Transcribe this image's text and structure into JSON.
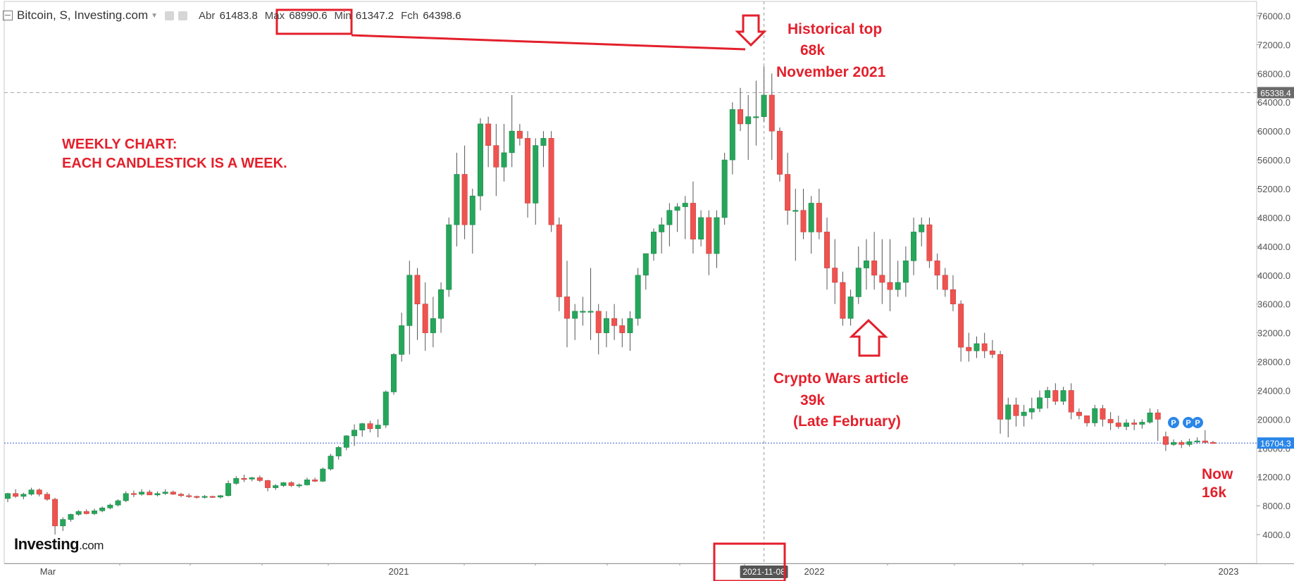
{
  "header": {
    "title": "Bitcoin, S, Investing.com",
    "open_label": "Abr",
    "open_value": "61483.8",
    "max_label": "Max",
    "max_value": "68990.6",
    "min_label": "Min",
    "min_value": "61347.2",
    "close_label": "Fch",
    "close_value": "64398.6"
  },
  "annotations": {
    "weekly_line1": "WEEKLY CHART:",
    "weekly_line2": "EACH CANDLESTICK IS A WEEK.",
    "top_line1": "Historical top",
    "top_line2": "68k",
    "top_line3": "November 2021",
    "wars_line1": "Crypto Wars article",
    "wars_line2": "39k",
    "wars_line3": "(Late February)",
    "now_line1": "Now",
    "now_line2": "16k"
  },
  "logo": {
    "brand": "Investing",
    "suffix": ".com"
  },
  "markers": [
    "P",
    "P",
    "P"
  ],
  "colors": {
    "up": "#26a65b",
    "down": "#ef5350",
    "annotation": "#e3202c",
    "price_line": "#3f5fd0",
    "marker": "#2a86e8"
  },
  "chart_data": {
    "type": "candlestick",
    "ylim": [
      0,
      78000
    ],
    "y_ticks": [
      "4000.0",
      "8000.0",
      "12000.0",
      "16000.0",
      "20000.0",
      "24000.0",
      "28000.0",
      "32000.0",
      "36000.0",
      "40000.0",
      "44000.0",
      "48000.0",
      "52000.0",
      "56000.0",
      "60000.0",
      "64000.0",
      "68000.0",
      "72000.0",
      "76000.0"
    ],
    "x_labels": [
      "Mar",
      "2021",
      "2022",
      "2023"
    ],
    "highlight_date": "2021-11-08",
    "ref_price_label": "65338.4",
    "current_price_label": "16704.3",
    "ref_price": 65338.4,
    "current_price": 16704.3,
    "candles": [
      [
        9000,
        9800,
        8500,
        9700
      ],
      [
        9700,
        10300,
        9100,
        9300
      ],
      [
        9300,
        9800,
        8900,
        9600
      ],
      [
        9600,
        10500,
        9400,
        10200
      ],
      [
        10200,
        10400,
        9300,
        9600
      ],
      [
        9600,
        9900,
        8700,
        8900
      ],
      [
        8900,
        9100,
        4000,
        5200
      ],
      [
        5200,
        6400,
        4500,
        6100
      ],
      [
        6100,
        6900,
        5800,
        6800
      ],
      [
        6800,
        7400,
        6600,
        7200
      ],
      [
        7200,
        7500,
        6800,
        6900
      ],
      [
        6900,
        7600,
        6700,
        7300
      ],
      [
        7300,
        7900,
        7100,
        7700
      ],
      [
        7700,
        8300,
        7500,
        8100
      ],
      [
        8100,
        8900,
        7900,
        8700
      ],
      [
        8700,
        10000,
        8500,
        9700
      ],
      [
        9700,
        10100,
        9200,
        9600
      ],
      [
        9600,
        10300,
        9400,
        9900
      ],
      [
        9900,
        10200,
        9500,
        9500
      ],
      [
        9500,
        10000,
        9300,
        9700
      ],
      [
        9700,
        10300,
        9500,
        9900
      ],
      [
        9900,
        10100,
        9500,
        9600
      ],
      [
        9600,
        9800,
        9200,
        9400
      ],
      [
        9400,
        9700,
        9100,
        9300
      ],
      [
        9300,
        9400,
        9000,
        9200
      ],
      [
        9200,
        9500,
        9000,
        9300
      ],
      [
        9300,
        9400,
        9100,
        9200
      ],
      [
        9200,
        9500,
        9000,
        9400
      ],
      [
        9400,
        11500,
        9300,
        11100
      ],
      [
        11100,
        12100,
        10900,
        11800
      ],
      [
        11800,
        12300,
        11300,
        11700
      ],
      [
        11700,
        12000,
        11400,
        11900
      ],
      [
        11900,
        12200,
        11300,
        11500
      ],
      [
        11500,
        11600,
        10000,
        10500
      ],
      [
        10500,
        11000,
        10200,
        10800
      ],
      [
        10800,
        11300,
        10600,
        11200
      ],
      [
        11200,
        11400,
        10600,
        10800
      ],
      [
        10800,
        11100,
        10500,
        10900
      ],
      [
        10900,
        11900,
        10800,
        11600
      ],
      [
        11600,
        11900,
        11300,
        11400
      ],
      [
        11400,
        13300,
        11300,
        13100
      ],
      [
        13100,
        15200,
        12900,
        14900
      ],
      [
        14900,
        16300,
        14400,
        16100
      ],
      [
        16100,
        17800,
        15700,
        17700
      ],
      [
        17700,
        19300,
        16300,
        18500
      ],
      [
        18500,
        19500,
        17600,
        19400
      ],
      [
        19400,
        19800,
        18200,
        18700
      ],
      [
        18700,
        20000,
        17500,
        19200
      ],
      [
        19200,
        24000,
        18800,
        23800
      ],
      [
        23800,
        29200,
        23400,
        29000
      ],
      [
        29000,
        34800,
        28000,
        33000
      ],
      [
        33000,
        42000,
        29000,
        40000
      ],
      [
        40000,
        41000,
        31000,
        36000
      ],
      [
        36000,
        39000,
        29500,
        32000
      ],
      [
        32000,
        37000,
        30000,
        34000
      ],
      [
        34000,
        39000,
        32000,
        38000
      ],
      [
        38000,
        48000,
        37000,
        47000
      ],
      [
        47000,
        57000,
        44000,
        54000
      ],
      [
        54000,
        58000,
        45000,
        47000
      ],
      [
        47000,
        52000,
        43000,
        51000
      ],
      [
        51000,
        61800,
        49000,
        61000
      ],
      [
        61000,
        62000,
        55000,
        58000
      ],
      [
        58000,
        61000,
        51000,
        55000
      ],
      [
        55000,
        61000,
        53000,
        57000
      ],
      [
        57000,
        65000,
        55000,
        60000
      ],
      [
        60000,
        61000,
        58000,
        59000
      ],
      [
        59000,
        60000,
        48000,
        50000
      ],
      [
        50000,
        59000,
        47000,
        58000
      ],
      [
        58000,
        60000,
        55000,
        59000
      ],
      [
        59000,
        60000,
        46000,
        47000
      ],
      [
        47000,
        48000,
        35000,
        37000
      ],
      [
        37000,
        42000,
        30000,
        34000
      ],
      [
        34000,
        36000,
        31000,
        35000
      ],
      [
        35000,
        37000,
        33000,
        35000
      ],
      [
        35000,
        41000,
        31000,
        35000
      ],
      [
        35000,
        36000,
        29000,
        32000
      ],
      [
        32000,
        35000,
        30000,
        34000
      ],
      [
        34000,
        36000,
        31000,
        33000
      ],
      [
        33000,
        34000,
        30000,
        32000
      ],
      [
        32000,
        35000,
        29500,
        34000
      ],
      [
        34000,
        41000,
        33000,
        40000
      ],
      [
        40000,
        43000,
        38000,
        43000
      ],
      [
        43000,
        46500,
        42000,
        46000
      ],
      [
        46000,
        48000,
        43000,
        47000
      ],
      [
        47000,
        50000,
        44000,
        49000
      ],
      [
        49000,
        50000,
        46000,
        49500
      ],
      [
        49500,
        51000,
        45000,
        50000
      ],
      [
        50000,
        53000,
        43000,
        45000
      ],
      [
        45000,
        49000,
        44000,
        48000
      ],
      [
        48000,
        49000,
        40000,
        43000
      ],
      [
        43000,
        49000,
        41000,
        48000
      ],
      [
        48000,
        57000,
        47000,
        56000
      ],
      [
        56000,
        64000,
        54000,
        63000
      ],
      [
        63000,
        66000,
        60000,
        61000
      ],
      [
        61000,
        65000,
        56000,
        62000
      ],
      [
        62000,
        67000,
        58000,
        62000
      ],
      [
        62000,
        68990,
        61300,
        65000
      ],
      [
        65000,
        68000,
        56000,
        60000
      ],
      [
        60000,
        60500,
        53000,
        54000
      ],
      [
        54000,
        57000,
        47000,
        49000
      ],
      [
        49000,
        52000,
        42000,
        49000
      ],
      [
        49000,
        52000,
        45000,
        46000
      ],
      [
        46000,
        51000,
        43000,
        50000
      ],
      [
        50000,
        52000,
        45000,
        46000
      ],
      [
        46000,
        48000,
        38000,
        41000
      ],
      [
        41000,
        45000,
        36000,
        39000
      ],
      [
        39000,
        40500,
        33000,
        34000
      ],
      [
        34000,
        38000,
        33000,
        37000
      ],
      [
        37000,
        44000,
        36000,
        41000
      ],
      [
        41000,
        45000,
        38000,
        42000
      ],
      [
        42000,
        46000,
        38000,
        40000
      ],
      [
        40000,
        45000,
        36000,
        39000
      ],
      [
        39000,
        45000,
        35000,
        38000
      ],
      [
        38000,
        42000,
        37000,
        39000
      ],
      [
        39000,
        44000,
        37000,
        42000
      ],
      [
        42000,
        48000,
        40000,
        46000
      ],
      [
        46000,
        48000,
        44000,
        47000
      ],
      [
        47000,
        48000,
        41000,
        42000
      ],
      [
        42000,
        43000,
        38000,
        40000
      ],
      [
        40000,
        41000,
        37000,
        38000
      ],
      [
        38000,
        40000,
        35000,
        36000
      ],
      [
        36000,
        36500,
        28000,
        30000
      ],
      [
        30000,
        32000,
        28000,
        29500
      ],
      [
        29500,
        31500,
        28500,
        30500
      ],
      [
        30500,
        32000,
        28500,
        29500
      ],
      [
        29500,
        31000,
        28500,
        29000
      ],
      [
        29000,
        29500,
        18000,
        20000
      ],
      [
        20000,
        23000,
        17500,
        22000
      ],
      [
        22000,
        23000,
        19000,
        20500
      ],
      [
        20500,
        22000,
        19000,
        21000
      ],
      [
        21000,
        23000,
        20000,
        21500
      ],
      [
        21500,
        24000,
        21000,
        23000
      ],
      [
        23000,
        24500,
        21500,
        24000
      ],
      [
        24000,
        25000,
        22000,
        22500
      ],
      [
        22500,
        24500,
        22000,
        24000
      ],
      [
        24000,
        25000,
        20000,
        21000
      ],
      [
        21000,
        21500,
        20000,
        20500
      ],
      [
        20500,
        20500,
        19000,
        19500
      ],
      [
        19500,
        22000,
        19000,
        21500
      ],
      [
        21500,
        22000,
        19000,
        20000
      ],
      [
        20000,
        21000,
        18500,
        19500
      ],
      [
        19500,
        20500,
        18700,
        19000
      ],
      [
        19000,
        20000,
        18500,
        19500
      ],
      [
        19500,
        20000,
        18500,
        19300
      ],
      [
        19300,
        20000,
        18700,
        19600
      ],
      [
        19600,
        21500,
        19400,
        20900
      ],
      [
        20900,
        21400,
        17000,
        20000
      ],
      [
        17600,
        18300,
        15600,
        16500
      ],
      [
        16500,
        17200,
        16300,
        16800
      ],
      [
        16800,
        17100,
        16000,
        16500
      ],
      [
        16500,
        17300,
        16200,
        16900
      ],
      [
        16900,
        17500,
        16600,
        17000
      ],
      [
        17000,
        18500,
        16600,
        16800
      ],
      [
        16800,
        17000,
        16600,
        16700
      ]
    ]
  }
}
